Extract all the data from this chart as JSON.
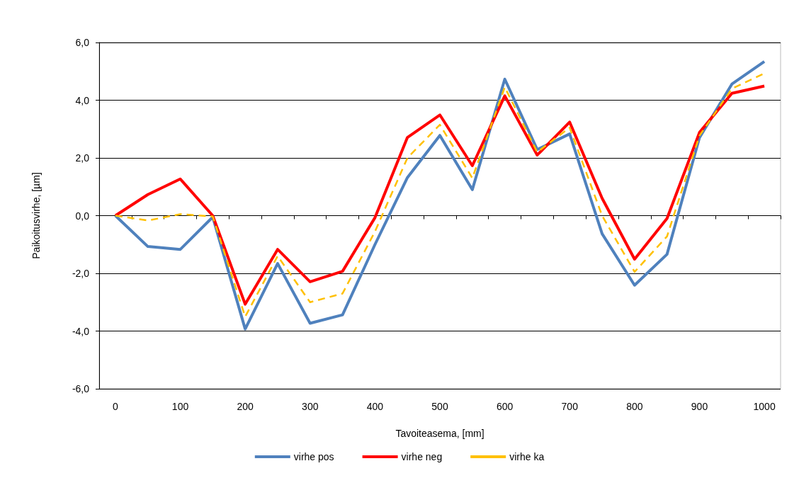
{
  "chart_data": {
    "type": "line",
    "xlabel": "Tavoiteasema, [mm]",
    "ylabel": "Paikoitusvirhe, [µm]",
    "categories": [
      "0",
      null,
      "100",
      null,
      "200",
      null,
      "300",
      null,
      "400",
      null,
      "500",
      null,
      "600",
      null,
      "700",
      null,
      "800",
      null,
      "900",
      null,
      "1000"
    ],
    "ylim": [
      -6,
      6
    ],
    "yticks": [
      {
        "value": -6,
        "label": "-6,0"
      },
      {
        "value": -4,
        "label": "-4,0"
      },
      {
        "value": -2,
        "label": "-2,0"
      },
      {
        "value": 0,
        "label": "0,0"
      },
      {
        "value": 2,
        "label": "2,0"
      },
      {
        "value": 4,
        "label": "4,0"
      },
      {
        "value": 6,
        "label": "6,0"
      }
    ],
    "grid": "y",
    "legend": "bottom",
    "marker": "none",
    "series": [
      {
        "name": "virhe pos",
        "color": "#4f81bd",
        "line_style": "solid",
        "values": [
          0,
          -1.07,
          -1.17,
          -0.05,
          -3.93,
          -1.66,
          -3.73,
          -3.44,
          -1.0,
          1.32,
          2.78,
          0.9,
          4.73,
          2.29,
          2.83,
          -0.63,
          -2.41,
          -1.34,
          2.7,
          4.56,
          5.34
        ]
      },
      {
        "name": "virhe neg",
        "color": "#ff0000",
        "line_style": "solid",
        "values": [
          0,
          0.73,
          1.27,
          0,
          -3.07,
          -1.17,
          -2.29,
          -1.93,
          -0.07,
          2.71,
          3.49,
          1.73,
          4.15,
          2.1,
          3.24,
          0.6,
          -1.51,
          -0.1,
          2.88,
          4.24,
          4.49
        ]
      },
      {
        "name": "virhe ka",
        "color": "#ffc000",
        "line_style": "dashed",
        "values": [
          0,
          -0.17,
          0.05,
          -0.03,
          -3.5,
          -1.4,
          -3.0,
          -2.7,
          -0.55,
          2.0,
          3.15,
          1.3,
          4.45,
          2.2,
          3.05,
          0.0,
          -1.95,
          -0.72,
          2.77,
          4.4,
          4.93
        ]
      }
    ]
  }
}
